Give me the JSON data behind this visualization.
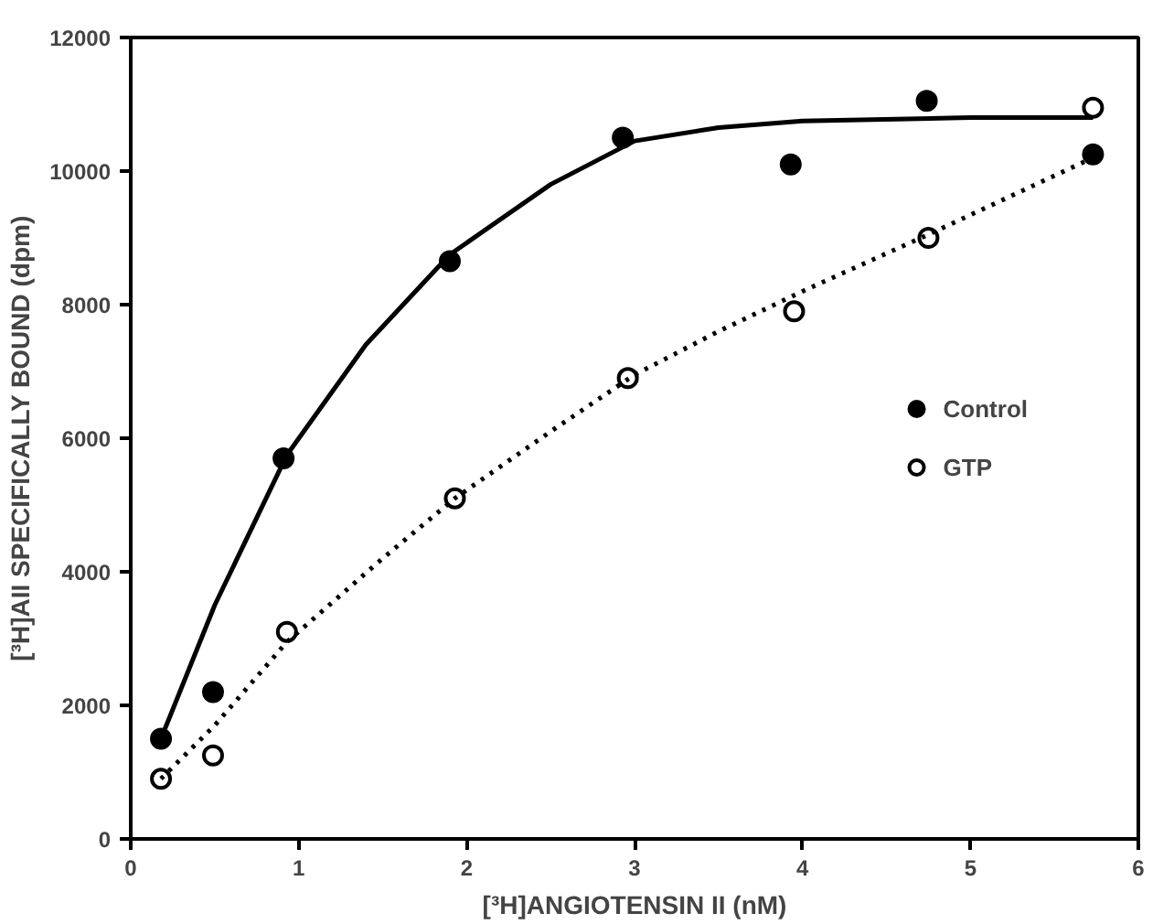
{
  "chart_data": {
    "type": "scatter",
    "xlabel": "[³H]ANGIOTENSIN II (nM)",
    "ylabel": "[³H]AII SPECIFICALLY BOUND (dpm)",
    "xlim": [
      0,
      6
    ],
    "ylim": [
      0,
      12000
    ],
    "xticks": [
      0,
      1,
      2,
      3,
      4,
      5,
      6
    ],
    "yticks": [
      0,
      2000,
      4000,
      6000,
      8000,
      10000,
      12000
    ],
    "grid": false,
    "legend": "right",
    "series": [
      {
        "name": "Control",
        "color": "#000000",
        "marker": "circle",
        "x": [
          0.18,
          0.49,
          0.91,
          1.9,
          2.93,
          3.93,
          4.74,
          5.73
        ],
        "values": [
          1500,
          2200,
          5700,
          8650,
          10500,
          10100,
          11050,
          10250
        ]
      },
      {
        "name": "GTP",
        "color": "#ffffff",
        "marker": "circle",
        "x": [
          0.18,
          0.49,
          0.93,
          1.93,
          2.96,
          3.95,
          4.75,
          5.73
        ],
        "values": [
          900,
          1250,
          3100,
          5100,
          6900,
          7900,
          9000,
          10950
        ]
      },
      {
        "type": "line",
        "color": "#000000",
        "marker": "none",
        "line_style": "solid",
        "x": [
          0.18,
          0.5,
          0.93,
          1.4,
          1.9,
          2.5,
          3.0,
          3.5,
          4.0,
          5.0,
          5.73
        ],
        "values": [
          1500,
          3500,
          5750,
          7400,
          8750,
          9800,
          10450,
          10650,
          10750,
          10800,
          10800
        ]
      },
      {
        "type": "line",
        "color": "#000000",
        "marker": "none",
        "line_style": "dotted",
        "x": [
          0.18,
          0.5,
          0.93,
          1.5,
          1.93,
          2.5,
          3.0,
          3.5,
          4.0,
          4.75,
          5.73
        ],
        "values": [
          900,
          1700,
          2950,
          4200,
          5100,
          6100,
          6950,
          7600,
          8200,
          9050,
          10200
        ]
      }
    ]
  }
}
